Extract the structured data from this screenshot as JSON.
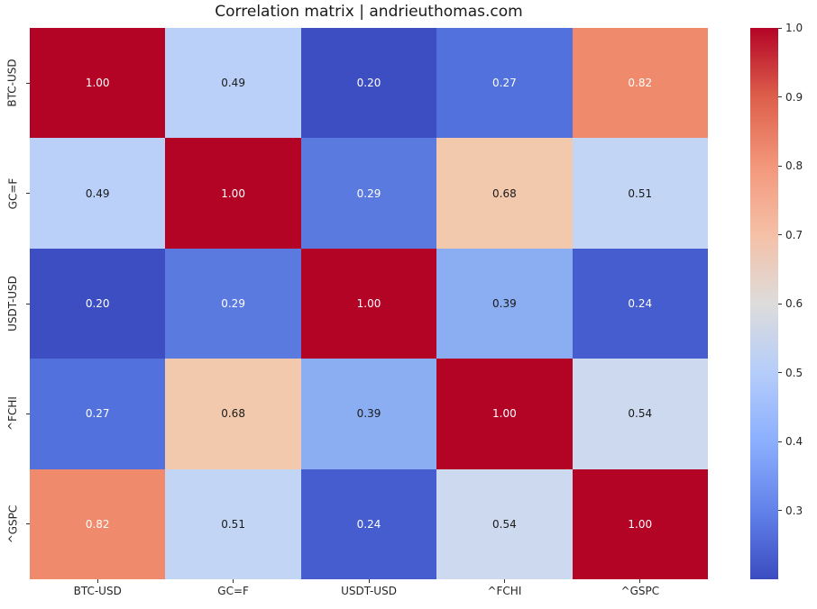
{
  "title": "Correlation matrix | andrieuthomas.com",
  "chart_data": {
    "type": "heatmap",
    "categories": [
      "BTC-USD",
      "GC=F",
      "USDT-USD",
      "^FCHI",
      "^GSPC"
    ],
    "matrix": [
      [
        1.0,
        0.49,
        0.2,
        0.27,
        0.82
      ],
      [
        0.49,
        1.0,
        0.29,
        0.68,
        0.51
      ],
      [
        0.2,
        0.29,
        1.0,
        0.39,
        0.24
      ],
      [
        0.27,
        0.68,
        0.39,
        1.0,
        0.54
      ],
      [
        0.82,
        0.51,
        0.24,
        0.54,
        1.0
      ]
    ],
    "annotation_decimals": 2,
    "colormap": "coolwarm",
    "vmin": 0.2,
    "vmax": 1.0,
    "colorbar_position": "right",
    "colorbar_ticks": [
      1.0,
      0.9,
      0.8,
      0.7,
      0.6,
      0.5,
      0.4,
      0.3
    ],
    "value_styles": {
      "1.00": {
        "bg": "#b40426",
        "text": "#ffffff"
      },
      "0.82": {
        "bg": "#f08a6c",
        "text": "#ffffff"
      },
      "0.68": {
        "bg": "#f2c9ad",
        "text": "#1a1a1a"
      },
      "0.54": {
        "bg": "#cdd9ee",
        "text": "#1a1a1a"
      },
      "0.51": {
        "bg": "#c3d5f4",
        "text": "#1a1a1a"
      },
      "0.49": {
        "bg": "#bad0f8",
        "text": "#1a1a1a"
      },
      "0.39": {
        "bg": "#8badf2",
        "text": "#1a1a1a"
      },
      "0.29": {
        "bg": "#5b7ae0",
        "text": "#ffffff"
      },
      "0.27": {
        "bg": "#5271dc",
        "text": "#ffffff"
      },
      "0.24": {
        "bg": "#455dcf",
        "text": "#ffffff"
      },
      "0.20": {
        "bg": "#3c4ec2",
        "text": "#ffffff"
      }
    },
    "colormap_stops": [
      {
        "pos": 0.0,
        "color": "#3b4cc0"
      },
      {
        "pos": 0.125,
        "color": "#6282ea"
      },
      {
        "pos": 0.25,
        "color": "#8caffe"
      },
      {
        "pos": 0.375,
        "color": "#b5cdfa"
      },
      {
        "pos": 0.5,
        "color": "#dddcdb"
      },
      {
        "pos": 0.625,
        "color": "#f5c0a7"
      },
      {
        "pos": 0.75,
        "color": "#f3977b"
      },
      {
        "pos": 0.875,
        "color": "#dd5f4b"
      },
      {
        "pos": 1.0,
        "color": "#b40426"
      }
    ]
  }
}
